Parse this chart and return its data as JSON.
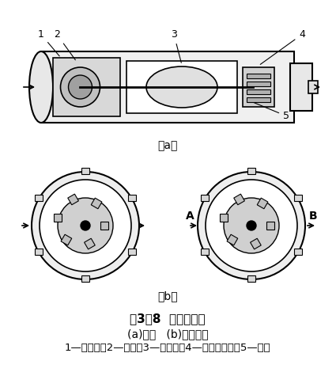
{
  "title_line1": "图3－8  电动燃油泵",
  "title_line2": "(a)结构   (b)工作原理",
  "title_line3": "1—限压阀；2—转子；3—电动机；4—出油单向阀；5—壳体",
  "bg_color": "#ffffff",
  "fig_width": 4.25,
  "fig_height": 4.94,
  "dpi": 100
}
